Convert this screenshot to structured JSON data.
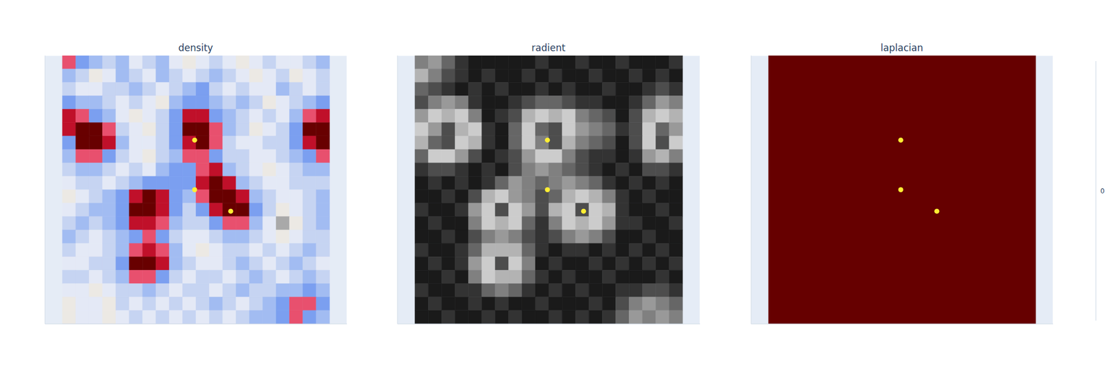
{
  "chart_data": [
    {
      "type": "heatmap",
      "title": "density",
      "xlim": [
        -1.3,
        21.3
      ],
      "ylim": [
        0,
        20
      ],
      "xticks": [
        0,
        4,
        8,
        12,
        16,
        20
      ],
      "yticks": [
        4,
        8,
        12,
        16
      ],
      "grid": true,
      "tick_labels": false,
      "zlim": [
        0,
        1
      ],
      "colors": [
        "#8c8c8c",
        "#a9a9a9",
        "#ece9e4",
        "#e4e9f6",
        "#c6d4f2",
        "#a2bcf2",
        "#7b9ff0",
        "#e8506e",
        "#c0102a",
        "#680000",
        "#680000"
      ],
      "cells": [
        [
          0.7,
          0.6,
          0.5,
          0.4,
          0.5,
          0.3,
          0.4,
          0.5,
          0.3,
          0.2,
          0.3,
          0.4,
          0.3,
          0.2,
          0.3,
          0.4,
          0.3,
          0.3,
          0.4,
          0.5
        ],
        [
          0.5,
          0.4,
          0.2,
          0.3,
          0.5,
          0.4,
          0.3,
          0.5,
          0.4,
          0.3,
          0.4,
          0.5,
          0.4,
          0.3,
          0.2,
          0.3,
          0.4,
          0.2,
          0.3,
          0.4
        ],
        [
          0.4,
          0.3,
          0.3,
          0.4,
          0.4,
          0.5,
          0.4,
          0.3,
          0.4,
          0.5,
          0.6,
          0.4,
          0.3,
          0.4,
          0.3,
          0.3,
          0.5,
          0.4,
          0.3,
          0.4
        ],
        [
          0.6,
          0.5,
          0.5,
          0.4,
          0.3,
          0.4,
          0.3,
          0.2,
          0.5,
          0.6,
          0.6,
          0.5,
          0.4,
          0.5,
          0.4,
          0.2,
          0.3,
          0.4,
          0.5,
          0.6
        ],
        [
          0.8,
          0.7,
          0.6,
          0.5,
          0.3,
          0.2,
          0.3,
          0.4,
          0.6,
          0.8,
          0.8,
          0.6,
          0.5,
          0.4,
          0.3,
          0.4,
          0.3,
          0.5,
          0.7,
          0.8
        ],
        [
          0.8,
          0.9,
          0.9,
          0.7,
          0.4,
          0.3,
          0.2,
          0.4,
          0.6,
          0.9,
          0.9,
          0.7,
          0.5,
          0.4,
          0.2,
          0.3,
          0.4,
          0.6,
          0.9,
          0.9
        ],
        [
          0.6,
          0.9,
          0.9,
          0.8,
          0.5,
          0.3,
          0.3,
          0.4,
          0.6,
          0.8,
          0.9,
          0.7,
          0.4,
          0.3,
          0.3,
          0.4,
          0.4,
          0.6,
          0.8,
          0.9
        ],
        [
          0.5,
          0.7,
          0.7,
          0.6,
          0.4,
          0.3,
          0.2,
          0.4,
          0.5,
          0.7,
          0.7,
          0.6,
          0.4,
          0.4,
          0.3,
          0.3,
          0.4,
          0.5,
          0.6,
          0.7
        ],
        [
          0.4,
          0.5,
          0.5,
          0.4,
          0.3,
          0.4,
          0.3,
          0.5,
          0.6,
          0.6,
          0.7,
          0.8,
          0.5,
          0.4,
          0.3,
          0.2,
          0.3,
          0.4,
          0.5,
          0.5
        ],
        [
          0.3,
          0.4,
          0.4,
          0.3,
          0.4,
          0.5,
          0.6,
          0.6,
          0.6,
          0.6,
          0.8,
          0.9,
          0.8,
          0.5,
          0.4,
          0.3,
          0.3,
          0.4,
          0.4,
          0.4
        ],
        [
          0.2,
          0.3,
          0.4,
          0.5,
          0.6,
          0.8,
          0.9,
          0.8,
          0.6,
          0.5,
          0.7,
          0.9,
          0.9,
          0.8,
          0.5,
          0.4,
          0.3,
          0.3,
          0.4,
          0.5
        ],
        [
          0.3,
          0.4,
          0.5,
          0.5,
          0.6,
          0.9,
          0.9,
          0.8,
          0.6,
          0.4,
          0.6,
          0.8,
          0.9,
          0.9,
          0.6,
          0.4,
          0.2,
          0.3,
          0.4,
          0.5
        ],
        [
          0.4,
          0.5,
          0.4,
          0.5,
          0.6,
          0.8,
          0.8,
          0.7,
          0.5,
          0.4,
          0.4,
          0.6,
          0.7,
          0.7,
          0.5,
          0.3,
          0.1,
          0.2,
          0.4,
          0.5
        ],
        [
          0.5,
          0.4,
          0.3,
          0.4,
          0.5,
          0.6,
          0.7,
          0.6,
          0.4,
          0.3,
          0.3,
          0.4,
          0.5,
          0.5,
          0.4,
          0.3,
          0.2,
          0.3,
          0.4,
          0.4
        ],
        [
          0.4,
          0.3,
          0.3,
          0.4,
          0.5,
          0.7,
          0.8,
          0.7,
          0.5,
          0.3,
          0.2,
          0.3,
          0.4,
          0.4,
          0.3,
          0.4,
          0.3,
          0.4,
          0.5,
          0.4
        ],
        [
          0.3,
          0.3,
          0.4,
          0.4,
          0.6,
          0.9,
          0.9,
          0.8,
          0.5,
          0.4,
          0.3,
          0.3,
          0.4,
          0.5,
          0.4,
          0.3,
          0.4,
          0.5,
          0.4,
          0.3
        ],
        [
          0.4,
          0.4,
          0.3,
          0.4,
          0.5,
          0.7,
          0.7,
          0.6,
          0.4,
          0.3,
          0.4,
          0.4,
          0.3,
          0.4,
          0.5,
          0.4,
          0.3,
          0.4,
          0.5,
          0.4
        ],
        [
          0.3,
          0.3,
          0.2,
          0.3,
          0.4,
          0.4,
          0.5,
          0.4,
          0.3,
          0.4,
          0.4,
          0.3,
          0.4,
          0.5,
          0.4,
          0.4,
          0.5,
          0.5,
          0.6,
          0.5
        ],
        [
          0.2,
          0.3,
          0.3,
          0.2,
          0.4,
          0.3,
          0.4,
          0.3,
          0.4,
          0.3,
          0.4,
          0.5,
          0.4,
          0.3,
          0.4,
          0.5,
          0.6,
          0.7,
          0.7,
          0.6
        ],
        [
          0.2,
          0.3,
          0.3,
          0.2,
          0.3,
          0.4,
          0.3,
          0.4,
          0.3,
          0.4,
          0.3,
          0.4,
          0.3,
          0.4,
          0.5,
          0.5,
          0.6,
          0.7,
          0.6,
          0.5
        ]
      ],
      "points": [
        {
          "x": 9.9,
          "y": 13.7
        },
        {
          "x": 9.9,
          "y": 10.0
        },
        {
          "x": 12.6,
          "y": 8.4
        }
      ],
      "marker": "circle",
      "color": "#ffee33"
    },
    {
      "type": "heatmap",
      "title": "radient",
      "xlim": [
        -1.3,
        21.3
      ],
      "ylim": [
        0,
        20
      ],
      "xticks": [
        0,
        4,
        8,
        12,
        16,
        20
      ],
      "yticks": [
        4,
        8,
        12,
        16
      ],
      "grid": true,
      "tick_labels": false,
      "zlim": [
        0,
        1
      ],
      "colors": [
        "#000000",
        "#ffffff"
      ],
      "cells": [
        [
          0.5,
          0.6,
          0.4,
          0.2,
          0.1,
          0.1,
          0.1,
          0.1,
          0.1,
          0.2,
          0.1,
          0.1,
          0.2,
          0.1,
          0.1,
          0.2,
          0.1,
          0.1,
          0.1,
          0.2
        ],
        [
          0.7,
          0.5,
          0.3,
          0.2,
          0.1,
          0.2,
          0.1,
          0.1,
          0.2,
          0.1,
          0.2,
          0.1,
          0.1,
          0.2,
          0.1,
          0.1,
          0.2,
          0.1,
          0.2,
          0.1
        ],
        [
          0.4,
          0.3,
          0.2,
          0.1,
          0.2,
          0.1,
          0.2,
          0.1,
          0.1,
          0.2,
          0.1,
          0.2,
          0.1,
          0.1,
          0.2,
          0.1,
          0.1,
          0.2,
          0.3,
          0.2
        ],
        [
          0.3,
          0.5,
          0.6,
          0.5,
          0.2,
          0.1,
          0.1,
          0.2,
          0.3,
          0.4,
          0.4,
          0.3,
          0.2,
          0.2,
          0.1,
          0.1,
          0.2,
          0.4,
          0.6,
          0.5
        ],
        [
          0.6,
          0.8,
          0.7,
          0.8,
          0.5,
          0.1,
          0.2,
          0.3,
          0.7,
          0.8,
          0.7,
          0.8,
          0.5,
          0.4,
          0.3,
          0.1,
          0.3,
          0.7,
          0.8,
          0.7
        ],
        [
          0.8,
          0.6,
          0.3,
          0.7,
          0.8,
          0.2,
          0.1,
          0.4,
          0.8,
          0.4,
          0.3,
          0.8,
          0.6,
          0.5,
          0.4,
          0.2,
          0.3,
          0.8,
          0.4,
          0.6
        ],
        [
          0.7,
          0.4,
          0.3,
          0.8,
          0.7,
          0.2,
          0.1,
          0.4,
          0.8,
          0.5,
          0.3,
          0.7,
          0.5,
          0.4,
          0.3,
          0.1,
          0.3,
          0.8,
          0.3,
          0.8
        ],
        [
          0.4,
          0.8,
          0.8,
          0.6,
          0.3,
          0.1,
          0.2,
          0.3,
          0.6,
          0.8,
          0.8,
          0.5,
          0.3,
          0.2,
          0.2,
          0.1,
          0.2,
          0.6,
          0.7,
          0.5
        ],
        [
          0.2,
          0.3,
          0.3,
          0.2,
          0.1,
          0.2,
          0.1,
          0.3,
          0.5,
          0.6,
          0.5,
          0.4,
          0.3,
          0.2,
          0.1,
          0.2,
          0.1,
          0.3,
          0.3,
          0.2
        ],
        [
          0.1,
          0.2,
          0.1,
          0.2,
          0.1,
          0.2,
          0.4,
          0.6,
          0.5,
          0.4,
          0.5,
          0.6,
          0.5,
          0.4,
          0.2,
          0.1,
          0.2,
          0.1,
          0.2,
          0.1
        ],
        [
          0.1,
          0.1,
          0.2,
          0.1,
          0.3,
          0.7,
          0.8,
          0.6,
          0.5,
          0.3,
          0.4,
          0.7,
          0.8,
          0.7,
          0.5,
          0.2,
          0.1,
          0.2,
          0.1,
          0.1
        ],
        [
          0.2,
          0.1,
          0.1,
          0.2,
          0.6,
          0.8,
          0.3,
          0.8,
          0.6,
          0.3,
          0.7,
          0.8,
          0.3,
          0.8,
          0.7,
          0.2,
          0.1,
          0.1,
          0.2,
          0.1
        ],
        [
          0.1,
          0.2,
          0.1,
          0.1,
          0.5,
          0.8,
          0.7,
          0.8,
          0.4,
          0.2,
          0.5,
          0.8,
          0.7,
          0.8,
          0.6,
          0.2,
          0.2,
          0.1,
          0.1,
          0.2
        ],
        [
          0.1,
          0.1,
          0.2,
          0.1,
          0.3,
          0.5,
          0.6,
          0.5,
          0.3,
          0.2,
          0.3,
          0.5,
          0.6,
          0.5,
          0.3,
          0.1,
          0.1,
          0.2,
          0.1,
          0.1
        ],
        [
          0.2,
          0.1,
          0.1,
          0.2,
          0.4,
          0.7,
          0.7,
          0.7,
          0.4,
          0.2,
          0.1,
          0.2,
          0.2,
          0.1,
          0.2,
          0.1,
          0.2,
          0.1,
          0.2,
          0.1
        ],
        [
          0.1,
          0.2,
          0.1,
          0.2,
          0.6,
          0.8,
          0.3,
          0.8,
          0.5,
          0.1,
          0.2,
          0.1,
          0.1,
          0.2,
          0.1,
          0.2,
          0.1,
          0.2,
          0.1,
          0.2
        ],
        [
          0.1,
          0.1,
          0.2,
          0.1,
          0.5,
          0.8,
          0.7,
          0.7,
          0.4,
          0.2,
          0.1,
          0.2,
          0.1,
          0.1,
          0.2,
          0.1,
          0.1,
          0.1,
          0.2,
          0.1
        ],
        [
          0.2,
          0.1,
          0.1,
          0.2,
          0.2,
          0.4,
          0.5,
          0.4,
          0.2,
          0.1,
          0.2,
          0.1,
          0.2,
          0.1,
          0.1,
          0.2,
          0.2,
          0.3,
          0.3,
          0.2
        ],
        [
          0.1,
          0.2,
          0.1,
          0.1,
          0.2,
          0.1,
          0.2,
          0.1,
          0.1,
          0.2,
          0.1,
          0.1,
          0.1,
          0.2,
          0.1,
          0.3,
          0.5,
          0.6,
          0.5,
          0.4
        ],
        [
          0.1,
          0.1,
          0.2,
          0.1,
          0.1,
          0.2,
          0.1,
          0.2,
          0.1,
          0.1,
          0.2,
          0.1,
          0.2,
          0.1,
          0.2,
          0.4,
          0.6,
          0.5,
          0.6,
          0.5
        ]
      ],
      "points": [
        {
          "x": 9.9,
          "y": 13.7
        },
        {
          "x": 9.9,
          "y": 10.0
        },
        {
          "x": 12.6,
          "y": 8.4
        }
      ],
      "marker": "circle",
      "color": "#ffee33"
    },
    {
      "type": "heatmap",
      "title": "laplacian",
      "xlim": [
        -1.3,
        21.3
      ],
      "ylim": [
        0,
        20
      ],
      "xticks": [
        0,
        4,
        8,
        12,
        16,
        20
      ],
      "yticks": [
        4,
        8,
        12,
        16
      ],
      "grid": true,
      "tick_labels": false,
      "cells": [
        [
          -0.5
        ]
      ],
      "colorbar": {
        "range": [
          -1,
          1
        ],
        "ticks": [
          0
        ],
        "colors": [
          "#660000",
          "#000080"
        ]
      },
      "points": [
        {
          "x": 9.9,
          "y": 13.7
        },
        {
          "x": 9.9,
          "y": 10.0
        },
        {
          "x": 12.6,
          "y": 8.4
        }
      ],
      "marker": "circle",
      "color": "#ffee33"
    }
  ]
}
